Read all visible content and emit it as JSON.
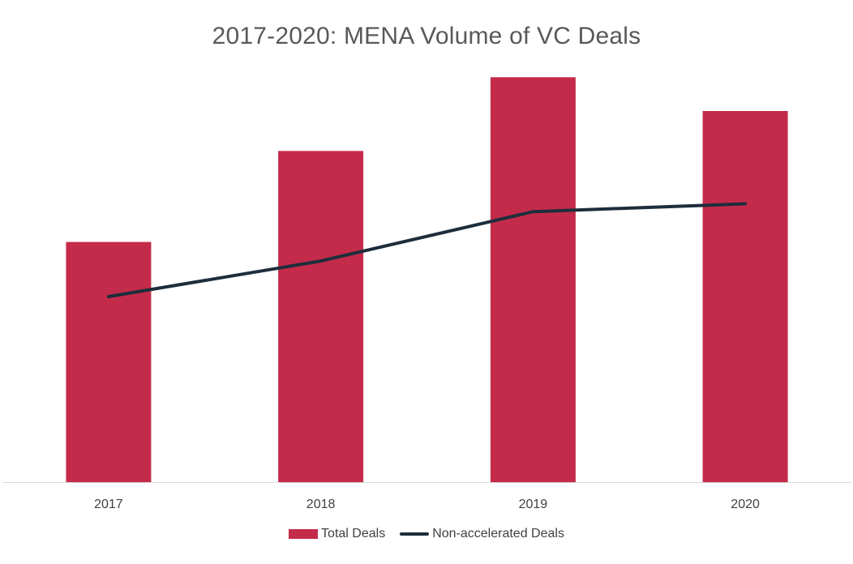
{
  "colors": {
    "bar": "#c42b4a",
    "line": "#1e2d3b",
    "axis": "#d9d9d9",
    "title": "#595959",
    "text": "#404040"
  },
  "chart_data": {
    "type": "bar",
    "title": "2017-2020: MENA Volume of VC Deals",
    "xlabel": "",
    "ylabel": "",
    "categories": [
      "2017",
      "2018",
      "2019",
      "2020"
    ],
    "series": [
      {
        "name": "Total Deals",
        "type": "bar",
        "values": [
          277,
          382,
          467,
          428
        ]
      },
      {
        "name": "Non-accelerated Deals",
        "type": "line",
        "values": [
          214,
          255,
          312,
          321
        ]
      }
    ],
    "ylim": [
      0,
      500
    ],
    "grid": false,
    "legend": "bottom-center"
  }
}
